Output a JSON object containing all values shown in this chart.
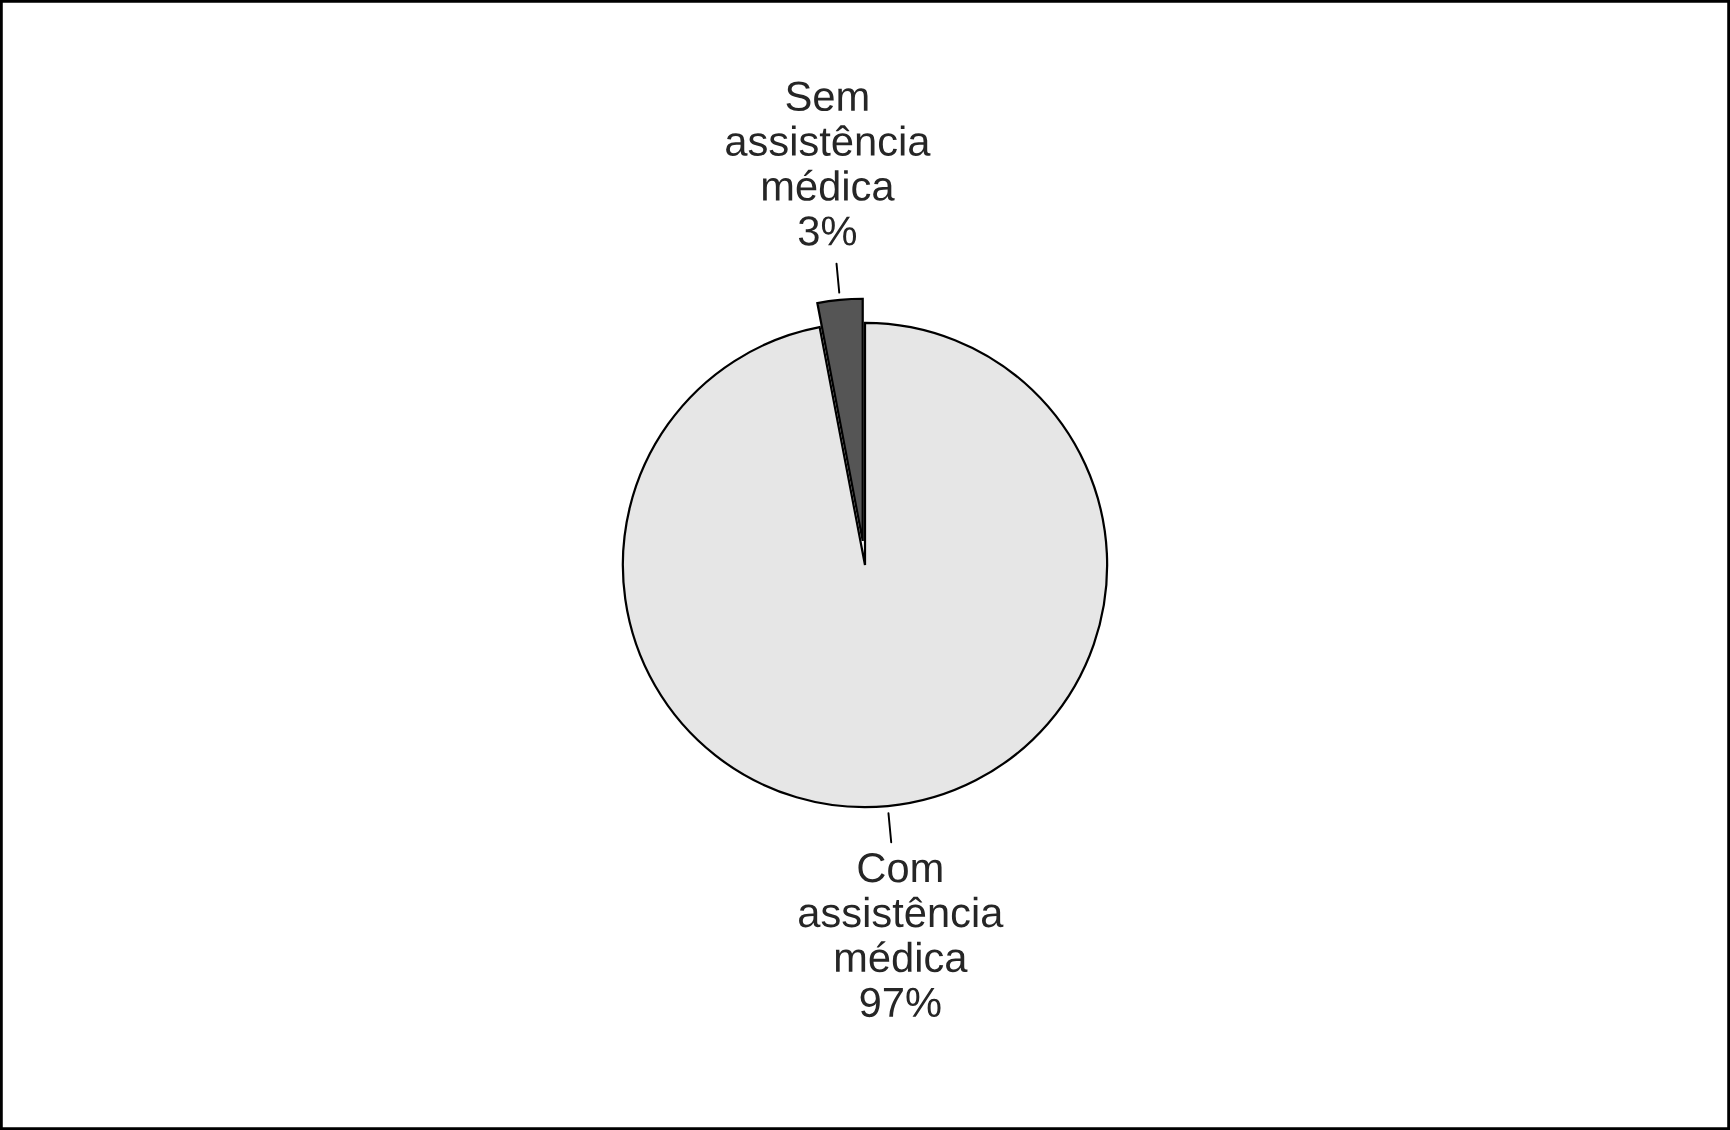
{
  "chart_data": {
    "type": "pie",
    "categories": [
      "Sem assistência médica",
      "Com assistência médica"
    ],
    "values": [
      3,
      97
    ],
    "value_labels": [
      "3%",
      "97%"
    ],
    "colors": [
      "#555555",
      "#e6e6e6"
    ]
  }
}
